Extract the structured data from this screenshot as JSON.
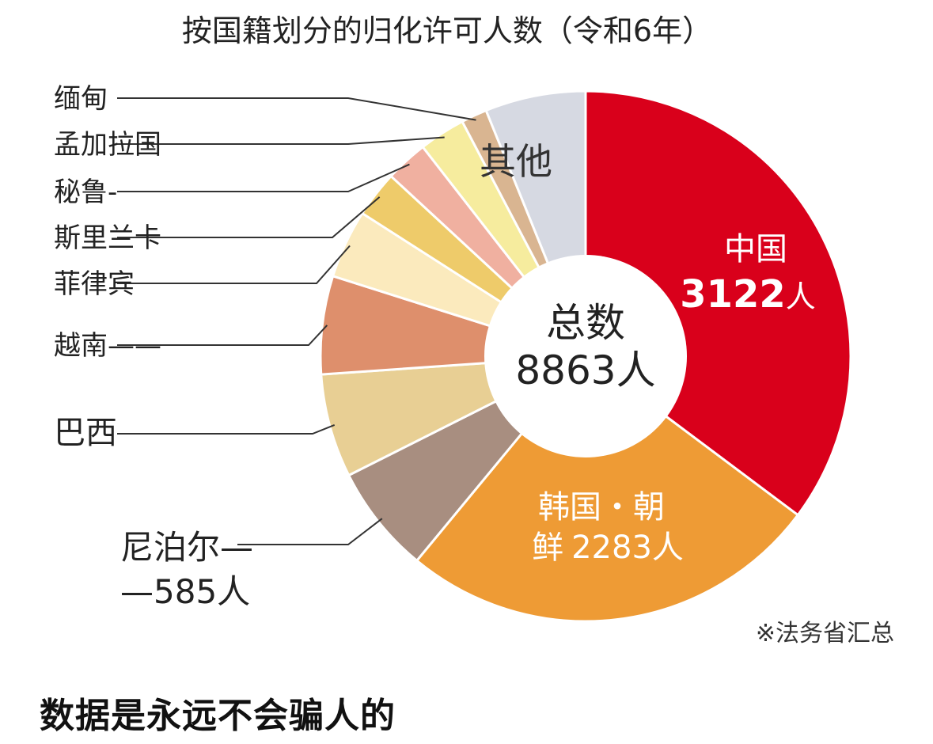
{
  "chart_data": {
    "type": "pie",
    "donut": true,
    "title": "按国籍划分的归化许可人数（令和6年）",
    "center_label": "总数",
    "center_value": "8863人",
    "total": 8863,
    "unit": "人",
    "source_note": "※法务省汇总",
    "slices": [
      {
        "name": "中国",
        "value": 3122,
        "value_label": "3122",
        "color": "#D9001B"
      },
      {
        "name_line1": "韩国・朝",
        "name_line2": "鲜",
        "value": 2283,
        "value_label": "2283人",
        "color": "#EE9B35"
      },
      {
        "name_line1": "尼泊尔—",
        "name_line2": "—585人",
        "value": 585,
        "color": "#A88E80"
      },
      {
        "name": "巴西",
        "value": 560,
        "color": "#E8CF94"
      },
      {
        "name": "越南——",
        "value": 530,
        "color": "#DE8F6C"
      },
      {
        "name": "菲律宾",
        "value": 370,
        "color": "#FBEABD"
      },
      {
        "name": "斯里兰卡",
        "value": 250,
        "color": "#EECB6A"
      },
      {
        "name": "秘鲁-",
        "value": 230,
        "color": "#F0B0A0"
      },
      {
        "name": "孟加拉国",
        "value": 250,
        "color": "#F6EC9E"
      },
      {
        "name": "缅甸",
        "value": 140,
        "color": "#D9B591"
      },
      {
        "name": "其他",
        "value": 543,
        "color": "#D6D9E2"
      }
    ],
    "legend": "callout-left"
  },
  "caption": "数据是永远不会骗人的"
}
